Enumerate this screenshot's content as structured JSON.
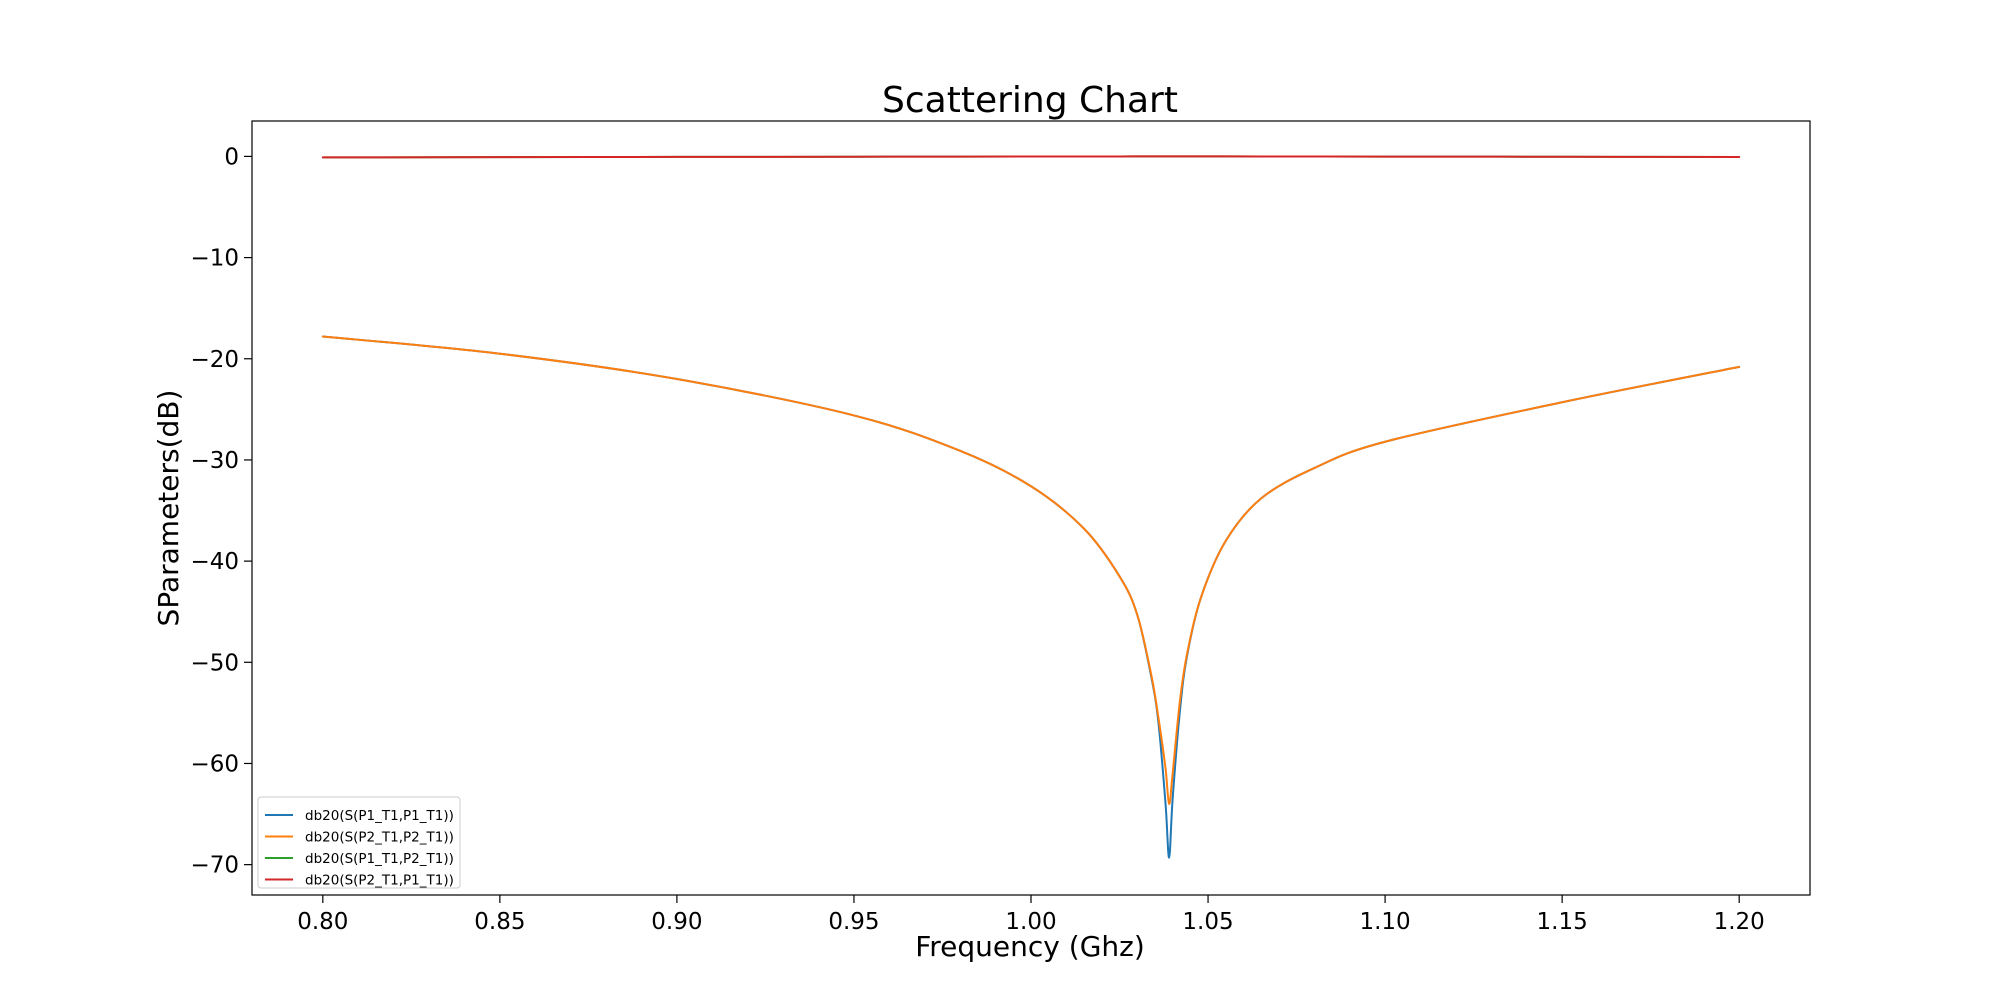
{
  "chart_data": {
    "type": "line",
    "title": "Scattering Chart",
    "xlabel": "Frequency (Ghz)",
    "ylabel": "SParameters(dB)",
    "xlim": [
      0.78,
      1.22
    ],
    "ylim": [
      -73,
      3.5
    ],
    "xticks": [
      0.8,
      0.85,
      0.9,
      0.95,
      1.0,
      1.05,
      1.1,
      1.15,
      1.2
    ],
    "xtick_labels": [
      "0.80",
      "0.85",
      "0.90",
      "0.95",
      "1.00",
      "1.05",
      "1.10",
      "1.15",
      "1.20"
    ],
    "yticks": [
      0,
      -10,
      -20,
      -30,
      -40,
      -50,
      -60,
      -70
    ],
    "ytick_labels": [
      "0",
      "−10",
      "−20",
      "−30",
      "−40",
      "−50",
      "−60",
      "−70"
    ],
    "grid": false,
    "legend_position": "lower-left",
    "x": [
      0.8,
      0.85,
      0.9,
      0.95,
      0.98,
      1.0,
      1.015,
      1.025,
      1.03,
      1.034,
      1.036,
      1.038,
      1.039,
      1.04,
      1.042,
      1.044,
      1.048,
      1.055,
      1.065,
      1.08,
      1.1,
      1.15,
      1.2
    ],
    "series": [
      {
        "name": "db20(S(P1_T1,P1_T1))",
        "color": "#1f77b4",
        "values": [
          -17.8,
          -19.5,
          -22.0,
          -25.6,
          -29.1,
          -32.6,
          -36.8,
          -41.5,
          -45.3,
          -51.5,
          -56.0,
          -64.0,
          -69.3,
          -63.5,
          -55.0,
          -49.5,
          -43.6,
          -38.0,
          -33.8,
          -30.8,
          -28.2,
          -24.3,
          -20.8
        ]
      },
      {
        "name": "db20(S(P2_T1,P2_T1))",
        "color": "#ff7f0e",
        "values": [
          -17.8,
          -19.5,
          -22.0,
          -25.6,
          -29.1,
          -32.6,
          -36.8,
          -41.5,
          -45.3,
          -51.3,
          -55.5,
          -60.5,
          -64.0,
          -61.0,
          -54.0,
          -49.3,
          -43.6,
          -38.0,
          -33.8,
          -30.8,
          -28.2,
          -24.3,
          -20.8
        ]
      },
      {
        "name": "db20(S(P1_T1,P2_T1))",
        "color": "#2ca02c",
        "values": [
          -0.1,
          -0.07,
          -0.05,
          -0.03,
          -0.02,
          -0.01,
          -0.01,
          -0.01,
          0.0,
          0.0,
          0.0,
          0.0,
          0.0,
          0.0,
          0.0,
          0.0,
          0.0,
          0.0,
          -0.01,
          -0.01,
          -0.02,
          -0.03,
          -0.06
        ]
      },
      {
        "name": "db20(S(P2_T1,P1_T1))",
        "color": "#d62728",
        "values": [
          -0.1,
          -0.07,
          -0.05,
          -0.03,
          -0.02,
          -0.01,
          -0.01,
          -0.01,
          0.0,
          0.0,
          0.0,
          0.0,
          0.0,
          0.0,
          0.0,
          0.0,
          0.0,
          0.0,
          -0.01,
          -0.01,
          -0.02,
          -0.03,
          -0.06
        ]
      }
    ]
  }
}
